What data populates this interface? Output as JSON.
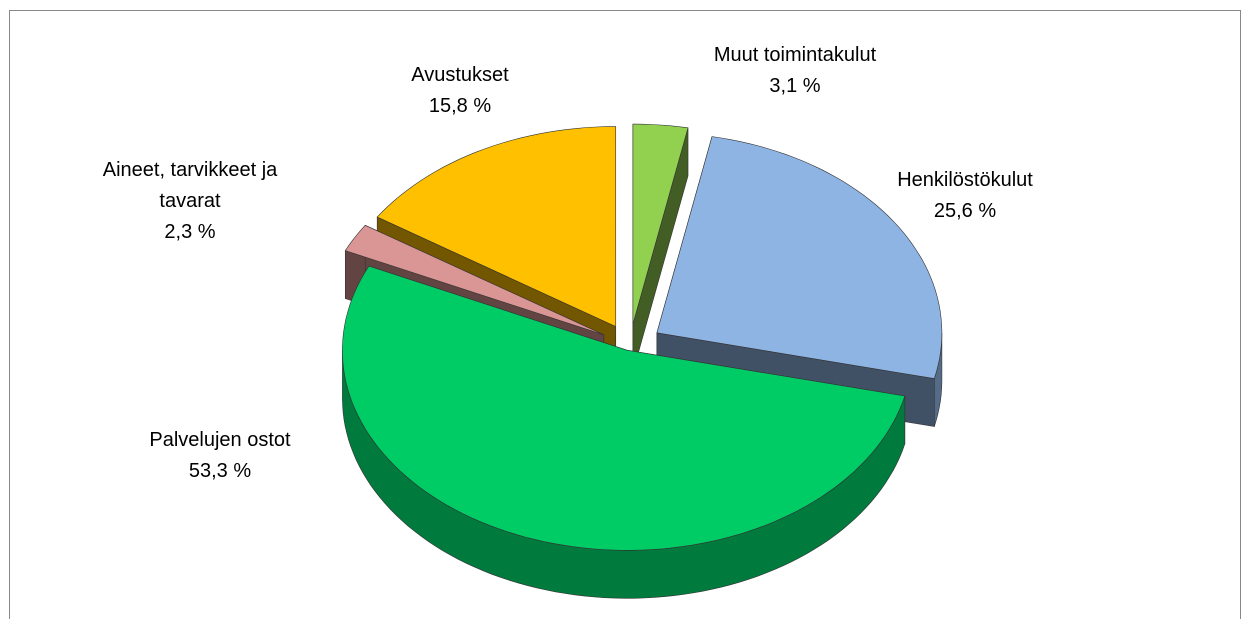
{
  "chart_data": {
    "type": "pie",
    "categories": [
      "Muut toimintakulut",
      "Henkilöstökulut",
      "Palvelujen ostot",
      "Aineet, tarvikkeet ja tavarat",
      "Avustukset"
    ],
    "values": [
      3.1,
      25.6,
      53.3,
      2.3,
      15.8
    ],
    "value_labels": [
      "3,1 %",
      "25,6 %",
      "53,3 %",
      "2,3 %",
      "15,8 %"
    ],
    "colors": [
      "#92d050",
      "#8eb4e3",
      "#00cc66",
      "#d99694",
      "#ffc000"
    ]
  }
}
